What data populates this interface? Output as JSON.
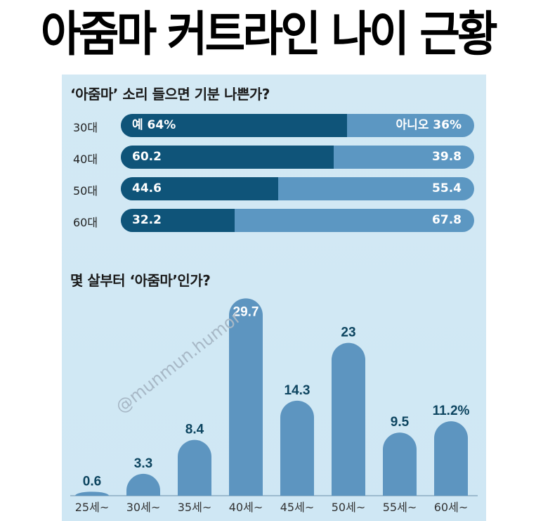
{
  "headline": "아줌마 커트라인 나이 근황",
  "watermark": "@munmun.humor",
  "colors": {
    "yes": "#0f5479",
    "no": "#5c97c2",
    "column": "#5d95c0",
    "value_text": "#0d4560"
  },
  "chart_data": [
    {
      "type": "bar",
      "orientation": "horizontal-stacked",
      "title": "‘아줌마’ 소리 들으면 기분 나쁜가?",
      "categories": [
        "30대",
        "40대",
        "50대",
        "60대"
      ],
      "series": [
        {
          "name": "예",
          "values": [
            64,
            60.2,
            44.6,
            32.2
          ]
        },
        {
          "name": "아니오",
          "values": [
            36,
            39.8,
            55.4,
            67.8
          ]
        }
      ],
      "labels_yes": [
        "예 64%",
        "60.2",
        "44.6",
        "32.2"
      ],
      "labels_no": [
        "아니오 36%",
        "39.8",
        "55.4",
        "67.8"
      ],
      "xlim": [
        0,
        100
      ]
    },
    {
      "type": "bar",
      "title": "몇 살부터 ‘아줌마’인가?",
      "categories": [
        "25세~",
        "30세~",
        "35세~",
        "40세~",
        "45세~",
        "50세~",
        "55세~",
        "60세~"
      ],
      "values": [
        0.6,
        3.3,
        8.4,
        29.7,
        14.3,
        23,
        9.5,
        11.2
      ],
      "value_labels": [
        "0.6",
        "3.3",
        "8.4",
        "29.7",
        "14.3",
        "23",
        "9.5",
        "11.2%"
      ],
      "ylim": [
        0,
        30
      ],
      "unit": "%"
    }
  ]
}
